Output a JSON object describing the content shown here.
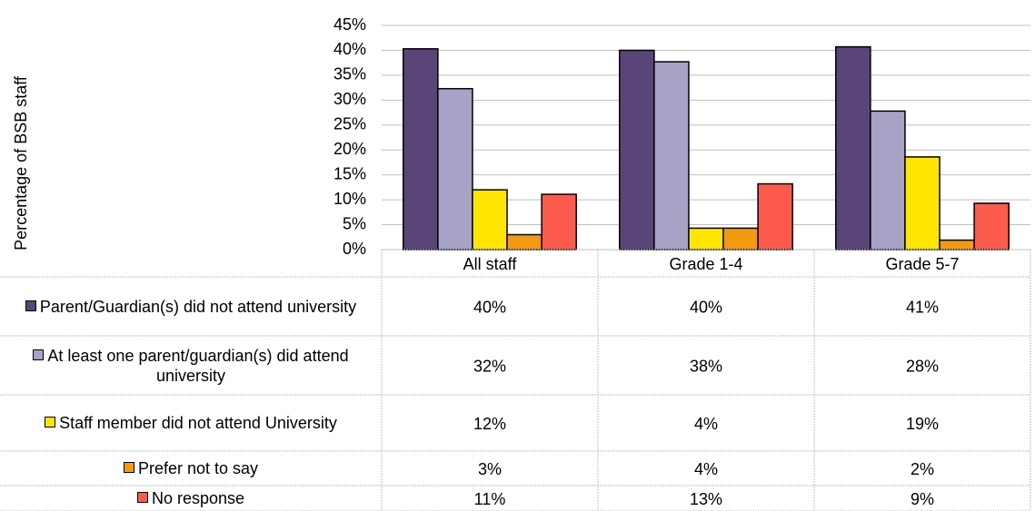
{
  "chart_data": {
    "type": "bar",
    "y_label": "Percentage of BSB staff",
    "categories": [
      "All staff",
      "Grade 1-4",
      "Grade 5-7"
    ],
    "series": [
      {
        "name": "Parent/Guardian(s) did not attend university",
        "color": "#5a4578",
        "values": [
          40.3,
          40,
          40.7
        ],
        "value_labels": [
          "40%",
          "40%",
          "41%"
        ]
      },
      {
        "name": "At least one parent/guardian(s) did attend university",
        "color": "#a7a3c6",
        "values": [
          32.3,
          37.7,
          27.8
        ],
        "value_labels": [
          "32%",
          "38%",
          "28%"
        ]
      },
      {
        "name": "Staff member did not attend University",
        "color": "#ffe600",
        "values": [
          12,
          4.3,
          18.6
        ],
        "value_labels": [
          "12%",
          "4%",
          "19%"
        ]
      },
      {
        "name": "Prefer not to say",
        "color": "#f39a10",
        "values": [
          3,
          4.3,
          1.9
        ],
        "value_labels": [
          "3%",
          "4%",
          "2%"
        ]
      },
      {
        "name": "No response",
        "color": "#fb5a4c",
        "values": [
          11.1,
          13.2,
          9.3
        ],
        "value_labels": [
          "11%",
          "13%",
          "9%"
        ]
      }
    ],
    "ylim": [
      0,
      45
    ],
    "yticks": [
      {
        "value": 0,
        "label": "0%"
      },
      {
        "value": 5,
        "label": "5%"
      },
      {
        "value": 10,
        "label": "10%"
      },
      {
        "value": 15,
        "label": "15%"
      },
      {
        "value": 20,
        "label": "20%"
      },
      {
        "value": 25,
        "label": "25%"
      },
      {
        "value": 30,
        "label": "30%"
      },
      {
        "value": 35,
        "label": "35%"
      },
      {
        "value": 40,
        "label": "40%"
      },
      {
        "value": 45,
        "label": "45%"
      }
    ],
    "grid": true
  }
}
